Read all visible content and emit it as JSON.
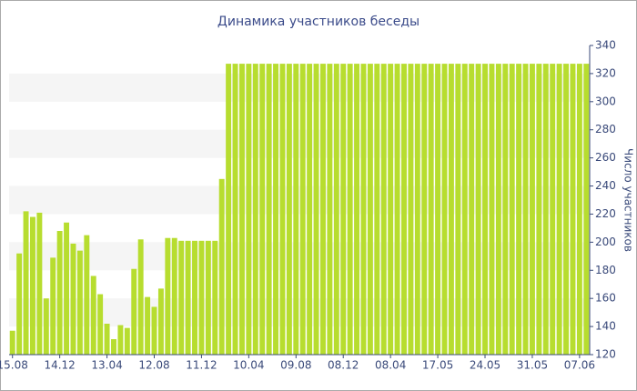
{
  "chart_data": {
    "type": "bar",
    "title": "Динамика участников беседы",
    "y_label": "Число участников",
    "categories": [
      "15.08",
      null,
      null,
      null,
      null,
      null,
      null,
      "14.12",
      null,
      null,
      null,
      null,
      null,
      null,
      "13.04",
      null,
      null,
      null,
      null,
      null,
      null,
      "12.08",
      null,
      null,
      null,
      null,
      null,
      null,
      "11.12",
      null,
      null,
      null,
      null,
      null,
      null,
      "10.04",
      null,
      null,
      null,
      null,
      null,
      null,
      "09.08",
      null,
      null,
      null,
      null,
      null,
      null,
      "08.12",
      null,
      null,
      null,
      null,
      null,
      null,
      "08.04",
      null,
      null,
      null,
      null,
      null,
      null,
      "17.05",
      null,
      null,
      null,
      null,
      null,
      null,
      "24.05",
      null,
      null,
      null,
      null,
      null,
      null,
      "31.05",
      null,
      null,
      null,
      null,
      null,
      null,
      "07.06",
      null
    ],
    "values": [
      137,
      192,
      222,
      218,
      221,
      160,
      189,
      208,
      214,
      199,
      194,
      205,
      176,
      163,
      142,
      131,
      141,
      139,
      181,
      202,
      161,
      154,
      167,
      203,
      203,
      201,
      201,
      201,
      201,
      201,
      201,
      245,
      327,
      327,
      327,
      327,
      327,
      327,
      327,
      327,
      327,
      327,
      327,
      327,
      327,
      327,
      327,
      327,
      327,
      327,
      327,
      327,
      327,
      327,
      327,
      327,
      327,
      327,
      327,
      327,
      327,
      327,
      327,
      327,
      327,
      327,
      327,
      327,
      327,
      327,
      327,
      327,
      327,
      327,
      327,
      327,
      327,
      327,
      327,
      327,
      327,
      327,
      327,
      327,
      327,
      327
    ],
    "color": "#b7dd2f",
    "ylim": [
      120,
      340
    ],
    "yticks": [
      120,
      140,
      160,
      180,
      200,
      220,
      240,
      260,
      280,
      300,
      320,
      340
    ],
    "y_axis_side": "right",
    "grid_bands": true
  }
}
